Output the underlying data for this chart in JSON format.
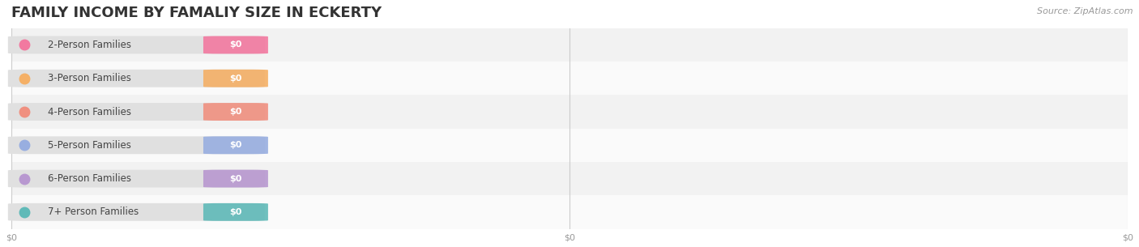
{
  "title": "FAMILY INCOME BY FAMALIY SIZE IN ECKERTY",
  "source": "Source: ZipAtlas.com",
  "categories": [
    "2-Person Families",
    "3-Person Families",
    "4-Person Families",
    "5-Person Families",
    "6-Person Families",
    "7+ Person Families"
  ],
  "values": [
    0,
    0,
    0,
    0,
    0,
    0
  ],
  "bar_colors": [
    "#f279a0",
    "#f5b066",
    "#f09080",
    "#98aee0",
    "#b898d0",
    "#60bab8"
  ],
  "label_bg": "#e8e8e8",
  "bar_height": 0.52,
  "background_color": "#ffffff",
  "row_bg_even": "#f2f2f2",
  "row_bg_odd": "#fafafa",
  "title_fontsize": 13,
  "label_fontsize": 8.5,
  "value_fontsize": 8,
  "source_fontsize": 8,
  "grid_color": "#cccccc",
  "tick_color": "#999999",
  "xtick_labels": [
    "$0",
    "$0",
    "$0"
  ],
  "xtick_positions": [
    0.0,
    0.5,
    1.0
  ]
}
